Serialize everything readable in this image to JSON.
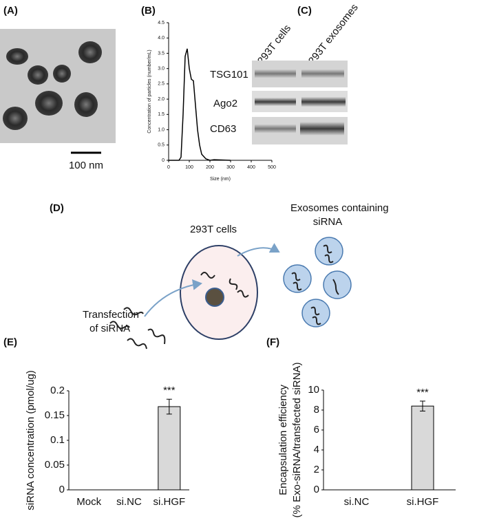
{
  "panel_a": {
    "label": "(A)",
    "scale_bar": "100 nm"
  },
  "panel_c": {
    "label": "(C)",
    "lanes": [
      "293T cells",
      "293T exosomes"
    ],
    "bands": [
      "TSG101",
      "Ago2",
      "CD63"
    ]
  },
  "panel_d": {
    "label": "(D)",
    "exosomes_label": [
      "Exosomes containing",
      "siRNA"
    ],
    "cells_label": "293T cells",
    "transfection_label": [
      "Transfection",
      "of siRNA"
    ]
  },
  "chart_data": [
    {
      "type": "line",
      "panel_label": "(B)",
      "xlabel": "Size (nm)",
      "ylabel": "Concentration of particles (number/mL)",
      "x": [
        0,
        50,
        60,
        70,
        80,
        90,
        100,
        110,
        120,
        130,
        140,
        150,
        160,
        180,
        200,
        220,
        300
      ],
      "values": [
        0,
        0,
        0.1,
        1.5,
        3.4,
        3.65,
        3.0,
        2.65,
        2.6,
        1.8,
        1.0,
        0.5,
        0.2,
        0.05,
        0,
        0.02,
        0
      ],
      "color": "#000000",
      "xlim": [
        0,
        500
      ],
      "xticks": [
        0,
        100,
        200,
        300,
        400,
        500
      ],
      "ylim": [
        0,
        4.5
      ],
      "yticks": [
        0,
        0.5,
        {
          "value": 1,
          "label": "1.0"
        },
        1.5,
        {
          "value": 2,
          "label": "2.0"
        },
        2.5,
        {
          "value": 3,
          "label": "3.0"
        },
        3.5,
        {
          "value": 4,
          "label": "4.0"
        },
        4.5
      ]
    },
    {
      "type": "bar",
      "panel_label": "(E)",
      "ylabel": "siRNA concentration (pmol/ug)",
      "categories": [
        "Mock",
        "si.NC",
        "si.HGF"
      ],
      "values": [
        0,
        0,
        0.168
      ],
      "errors": [
        0,
        0,
        0.015
      ],
      "value_annotations": [
        null,
        null,
        "***"
      ],
      "color": "#d9d9d9",
      "ylim": [
        0,
        0.2
      ],
      "yticks": [
        0,
        0.05,
        0.1,
        0.15,
        0.2
      ]
    },
    {
      "type": "bar",
      "panel_label": "(F)",
      "ylabel": [
        "Encapsulation efficiency",
        "(% Exo-siRNA/transfected siRNA)"
      ],
      "categories": [
        "si.NC",
        "si.HGF"
      ],
      "values": [
        0,
        8.4
      ],
      "errors": [
        0,
        0.5
      ],
      "value_annotations": [
        null,
        "***"
      ],
      "color": "#d9d9d9",
      "ylim": [
        0,
        10
      ],
      "yticks": [
        0,
        2,
        4,
        6,
        8,
        10
      ]
    }
  ]
}
